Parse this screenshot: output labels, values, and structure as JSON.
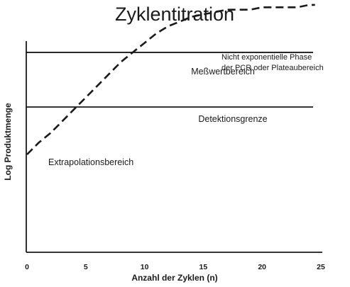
{
  "chart_data": {
    "type": "line",
    "title": "Zyklentitration",
    "xlabel": "Anzahl der Zyklen (n)",
    "ylabel": "Log Produktmenge",
    "xlim": [
      0,
      25
    ],
    "ylim": [
      0,
      10
    ],
    "x_ticks": [
      "0",
      "5",
      "10",
      "15",
      "20",
      "25"
    ],
    "grid": false,
    "legend": "none",
    "series": [
      {
        "style": "dashed",
        "color": "#1a1a1a",
        "x": [
          0,
          1,
          2,
          3,
          4,
          5,
          6,
          7,
          8,
          9,
          10,
          11,
          12,
          13,
          14,
          15,
          16,
          17,
          18,
          19,
          20,
          21,
          22,
          23,
          24,
          24.5
        ],
        "y": [
          4.0,
          4.5,
          4.9,
          5.4,
          5.9,
          6.4,
          6.9,
          7.4,
          7.9,
          8.3,
          8.7,
          9.1,
          9.4,
          9.6,
          9.8,
          9.9,
          10.0,
          10.1,
          10.1,
          10.1,
          10.2,
          10.2,
          10.2,
          10.2,
          10.3,
          10.3
        ]
      }
    ],
    "reference_lines": [
      {
        "y": 8.3,
        "label": "Meßwertbereich"
      },
      {
        "y": 6.0,
        "label": "Detektionsgrenze"
      }
    ],
    "annotations": [
      {
        "lines": [
          "Nicht exponentielle Phase",
          "der PCR oder Plateaubereich"
        ]
      },
      {
        "lines": [
          "Extrapolationsbereich"
        ]
      }
    ]
  }
}
